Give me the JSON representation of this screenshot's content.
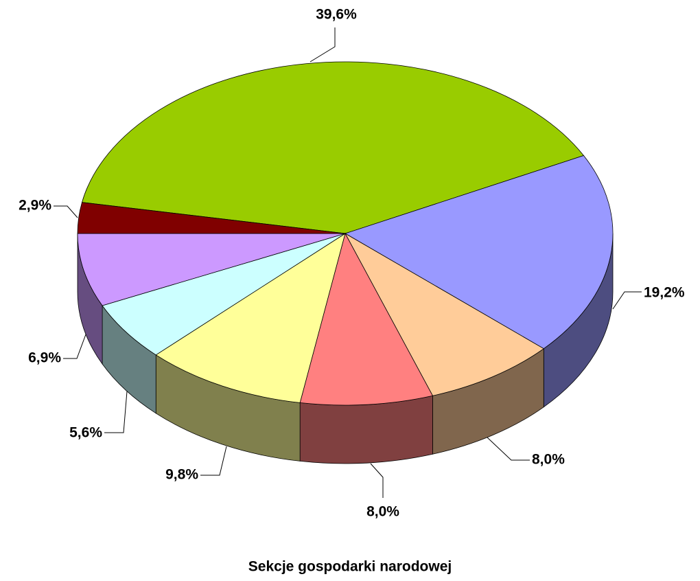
{
  "chart_data": {
    "type": "pie",
    "title": "Sekcje gospodarki narodowej",
    "values": [
      39.6,
      19.2,
      8.0,
      8.0,
      9.8,
      5.6,
      6.9,
      2.9
    ],
    "value_labels": [
      "39,6%",
      "19,2%",
      "8,0%",
      "8,0%",
      "9,8%",
      "5,6%",
      "6,9%",
      "2,9%"
    ],
    "colors": [
      "#99cc00",
      "#9999ff",
      "#ffcc99",
      "#ff8080",
      "#ffff99",
      "#ccffff",
      "#cc99ff",
      "#800000"
    ]
  }
}
